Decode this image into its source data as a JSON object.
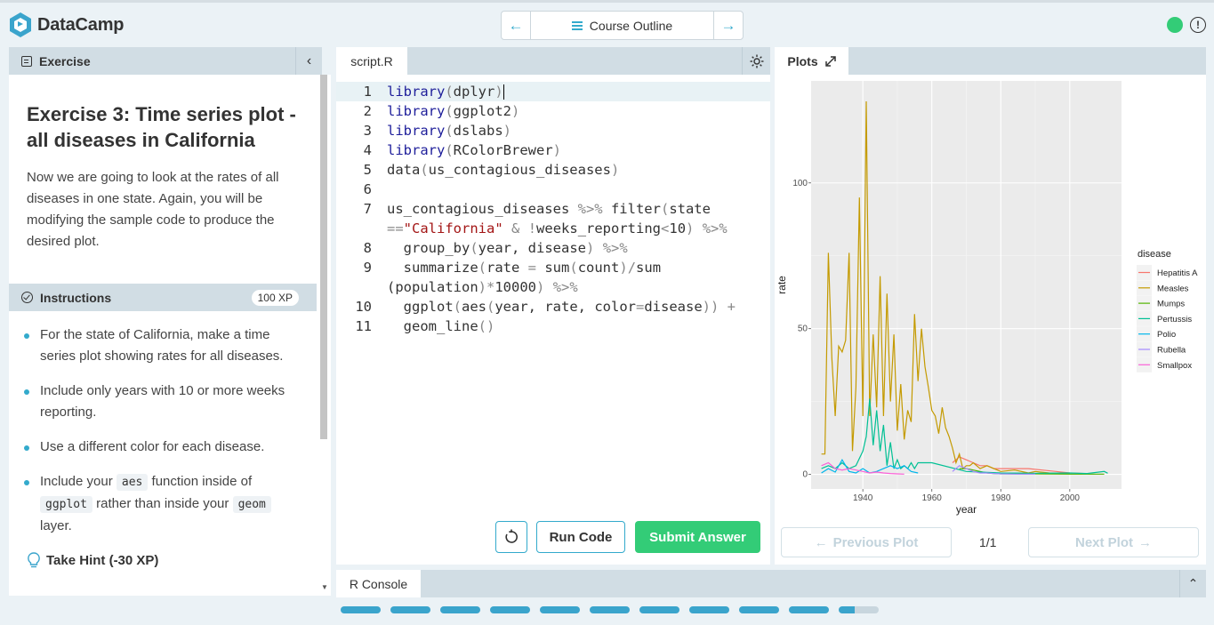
{
  "header": {
    "logo_text": "DataCamp",
    "nav_label": "Course Outline",
    "status_color": "#33cc77"
  },
  "exercise": {
    "tab_label": "Exercise",
    "title": "Exercise 3: Time series plot - all diseases in California",
    "description": "Now we are going to look at the rates of all diseases in one state. Again, you will be modifying the sample code to produce the desired plot."
  },
  "instructions": {
    "tab_label": "Instructions",
    "xp": "100 XP",
    "items": [
      "For the state of California, make a time series plot showing rates for all diseases.",
      "Include only years with 10 or more weeks reporting.",
      "Use a different color for each disease."
    ],
    "item4": {
      "pre": "Include your",
      "code1": "aes",
      "mid": "function inside of",
      "code2": "ggplot",
      "mid2": "rather than inside your",
      "code3": "geom",
      "post": "layer."
    },
    "hint": "Take Hint (-30 XP)"
  },
  "editor": {
    "tab_label": "script.R",
    "buttons": {
      "run": "Run Code",
      "submit": "Submit Answer"
    }
  },
  "console": {
    "tab_label": "R Console"
  },
  "plots": {
    "tab_label": "Plots",
    "prev_label": "Previous Plot",
    "next_label": "Next Plot",
    "count": "1/1"
  },
  "chart_data": {
    "type": "line",
    "xlabel": "year",
    "ylabel": "rate",
    "xlim": [
      1925,
      2015
    ],
    "ylim": [
      -5,
      135
    ],
    "xticks": [
      1940,
      1960,
      1980,
      2000
    ],
    "yticks": [
      0,
      50,
      100
    ],
    "legend_title": "disease",
    "legend_position": "right",
    "series": [
      {
        "name": "Hepatitis A",
        "color": "#F8766D",
        "x": [
          1966,
          1968,
          1970,
          1972,
          1974,
          1976,
          1978,
          1980,
          1984,
          1988,
          1992,
          1996,
          2000,
          2004
        ],
        "y": [
          4,
          6,
          5,
          4,
          3,
          3,
          2,
          2,
          2,
          2,
          1.5,
          1,
          0.5,
          0.3
        ]
      },
      {
        "name": "Measles",
        "color": "#C49A00",
        "x": [
          1928,
          1929,
          1930,
          1931,
          1932,
          1933,
          1934,
          1935,
          1936,
          1937,
          1938,
          1939,
          1940,
          1941,
          1942,
          1943,
          1944,
          1945,
          1946,
          1947,
          1948,
          1949,
          1950,
          1951,
          1952,
          1953,
          1954,
          1955,
          1956,
          1957,
          1958,
          1959,
          1960,
          1961,
          1962,
          1963,
          1964,
          1965,
          1966,
          1967,
          1968,
          1969,
          1970,
          1971,
          1972,
          1974,
          1976,
          1978,
          1980,
          1984,
          1988,
          1990,
          1994,
          2000
        ],
        "y": [
          7,
          7,
          76,
          40,
          20,
          44,
          42,
          46,
          76,
          8,
          30,
          95,
          20,
          128,
          20,
          48,
          23,
          68,
          20,
          62,
          25,
          48,
          15,
          31,
          12,
          22,
          18,
          55,
          32,
          50,
          37,
          30,
          22,
          20,
          14,
          23,
          16,
          13,
          9,
          4,
          7,
          2,
          3,
          3,
          4,
          2,
          3,
          2,
          1,
          1.5,
          0.5,
          1,
          0.5,
          0.3
        ]
      },
      {
        "name": "Mumps",
        "color": "#53B400",
        "x": [
          1968,
          1970,
          1972,
          1974,
          1976,
          1978,
          1980,
          1990,
          2000,
          2010
        ],
        "y": [
          2,
          2,
          1.5,
          1,
          0.5,
          0.3,
          0.2,
          0.2,
          0.1,
          0.1
        ]
      },
      {
        "name": "Pertussis",
        "color": "#00C094",
        "x": [
          1928,
          1930,
          1932,
          1934,
          1936,
          1938,
          1940,
          1941,
          1942,
          1943,
          1944,
          1945,
          1946,
          1947,
          1948,
          1949,
          1950,
          1951,
          1952,
          1953,
          1954,
          1955,
          1956,
          1960,
          1970,
          1980,
          1990,
          2000,
          2005,
          2010,
          2011
        ],
        "y": [
          2,
          3,
          2,
          4,
          2,
          3,
          8,
          13,
          26,
          10,
          22,
          8,
          17,
          3,
          11,
          2,
          5,
          2,
          3,
          2,
          4,
          2,
          4,
          4,
          1,
          0.5,
          0.4,
          0.5,
          0.3,
          1,
          0.4
        ]
      },
      {
        "name": "Polio",
        "color": "#00B6EB",
        "x": [
          1928,
          1930,
          1932,
          1934,
          1936,
          1938,
          1940,
          1942,
          1944,
          1946,
          1948,
          1950,
          1952,
          1954,
          1956
        ],
        "y": [
          0.5,
          2,
          0.8,
          5,
          1,
          0.5,
          2,
          0.5,
          1,
          2,
          3,
          2,
          3,
          1,
          0.5
        ]
      },
      {
        "name": "Rubella",
        "color": "#A58AFF",
        "x": [
          1966,
          1968,
          1970,
          1972,
          1974,
          1976,
          1978,
          1980,
          1985,
          1990
        ],
        "y": [
          1,
          3,
          2,
          1,
          0.5,
          0.5,
          0.3,
          0.2,
          0.1,
          0.1
        ]
      },
      {
        "name": "Smallpox",
        "color": "#FB61D7",
        "x": [
          1928,
          1930,
          1932,
          1934,
          1936,
          1938,
          1940,
          1942,
          1944,
          1946,
          1948,
          1950,
          1952
        ],
        "y": [
          3,
          4,
          2,
          1.5,
          2,
          1.5,
          1,
          0.5,
          0.8,
          0.5,
          0.3,
          0.2,
          0.1
        ]
      }
    ]
  }
}
